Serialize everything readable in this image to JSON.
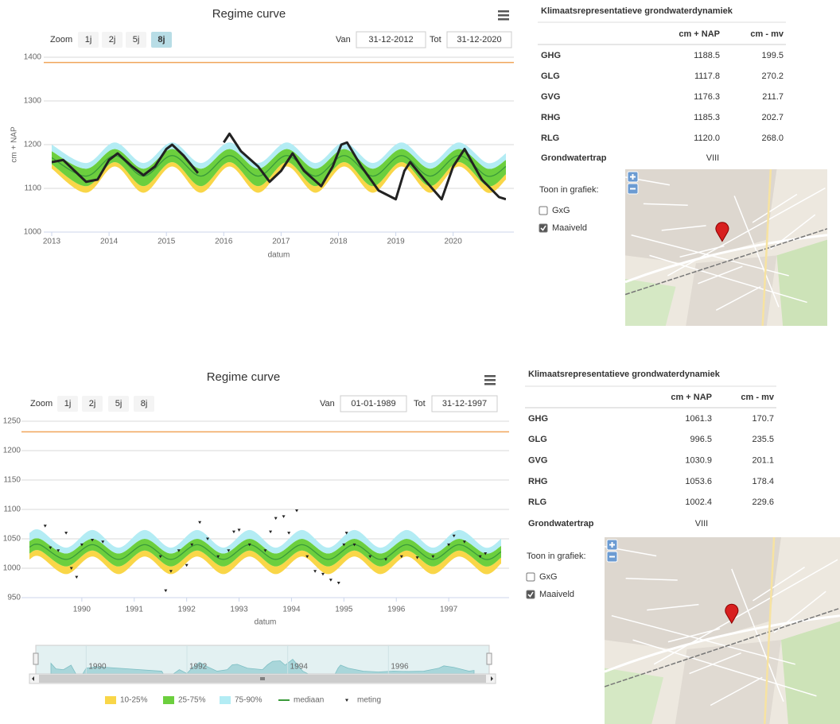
{
  "chart_data": [
    {
      "type": "line",
      "title": "Regime curve",
      "zoom_label": "Zoom",
      "zoom_buttons": [
        "1j",
        "2j",
        "5j",
        "8j"
      ],
      "active_zoom": 3,
      "from_label": "Van",
      "from": "31-12-2012",
      "to_label": "Tot",
      "to": "31-12-2020",
      "ylabel": "cm + NAP",
      "xlabel": "datum",
      "xlim": [
        2013,
        2020.92
      ],
      "ylim": [
        1000,
        1400
      ],
      "xticks": [
        2013,
        2014,
        2015,
        2016,
        2017,
        2018,
        2019,
        2020
      ],
      "yticks": [
        1000,
        1100,
        1200,
        1300,
        1400
      ],
      "grid": true,
      "maaiveld": {
        "value": 1388,
        "color": "#f0a55a"
      },
      "band_x": [
        2013.0,
        2013.6,
        2014.1,
        2014.6,
        2015.1,
        2015.6,
        2016.1,
        2016.6,
        2017.1,
        2017.6,
        2018.1,
        2018.6,
        2019.1,
        2019.6,
        2020.1,
        2020.6,
        2020.92
      ],
      "bands": [
        {
          "color": "#f9d648",
          "lower": [
            1145,
            1090,
            1150,
            1090,
            1150,
            1090,
            1150,
            1090,
            1150,
            1090,
            1150,
            1090,
            1150,
            1090,
            1150,
            1090,
            1120
          ],
          "upper": [
            1155,
            1105,
            1160,
            1105,
            1160,
            1105,
            1160,
            1105,
            1160,
            1105,
            1160,
            1105,
            1160,
            1105,
            1160,
            1105,
            1132
          ]
        },
        {
          "color": "#6ccf3e",
          "lower": [
            1155,
            1105,
            1160,
            1105,
            1160,
            1105,
            1160,
            1105,
            1160,
            1105,
            1160,
            1105,
            1160,
            1105,
            1160,
            1105,
            1132
          ],
          "upper": [
            1185,
            1145,
            1190,
            1145,
            1190,
            1145,
            1190,
            1145,
            1190,
            1145,
            1190,
            1145,
            1190,
            1145,
            1190,
            1145,
            1165
          ]
        },
        {
          "color": "#b3ecf4",
          "lower": [
            1185,
            1145,
            1190,
            1145,
            1190,
            1145,
            1190,
            1145,
            1190,
            1145,
            1190,
            1145,
            1190,
            1145,
            1190,
            1145,
            1165
          ],
          "upper": [
            1200,
            1158,
            1205,
            1158,
            1205,
            1158,
            1205,
            1158,
            1205,
            1158,
            1205,
            1158,
            1205,
            1158,
            1205,
            1158,
            1180
          ]
        }
      ],
      "median": {
        "color": "#3a9a3a",
        "values": [
          1170,
          1128,
          1175,
          1128,
          1175,
          1128,
          1175,
          1128,
          1175,
          1128,
          1175,
          1128,
          1175,
          1128,
          1175,
          1128,
          1150
        ]
      },
      "meting": {
        "color": "#222222",
        "x": [
          2013.0,
          2013.2,
          2013.4,
          2013.6,
          2013.8,
          2014.0,
          2014.15,
          2014.4,
          2014.6,
          2014.8,
          2015.0,
          2015.1,
          2015.3,
          2015.55,
          2015.8,
          2016.0,
          2016.1,
          2016.3,
          2016.6,
          2016.8,
          2017.0,
          2017.2,
          2017.4,
          2017.7,
          2017.9,
          2018.05,
          2018.15,
          2018.4,
          2018.7,
          2019.0,
          2019.15,
          2019.25,
          2019.5,
          2019.8,
          2020.0,
          2020.2,
          2020.5,
          2020.8,
          2020.92
        ],
        "values": [
          1160,
          1165,
          1140,
          1115,
          1120,
          1165,
          1180,
          1150,
          1130,
          1150,
          1190,
          1200,
          1175,
          1135,
          null,
          1205,
          1225,
          1185,
          1150,
          1115,
          1140,
          1180,
          1140,
          1105,
          1150,
          1200,
          1205,
          1150,
          1095,
          1075,
          1140,
          1160,
          1120,
          1075,
          1150,
          1190,
          1120,
          1080,
          1075
        ]
      }
    },
    {
      "type": "scatter",
      "title": "Regime curve",
      "zoom_label": "Zoom",
      "zoom_buttons": [
        "1j",
        "2j",
        "5j",
        "8j"
      ],
      "from_label": "Van",
      "from": "01-01-1989",
      "to_label": "Tot",
      "to": "31-12-1997",
      "xlabel": "datum",
      "xlim": [
        1989,
        1998
      ],
      "ylim": [
        950,
        1250
      ],
      "xticks": [
        1990,
        1991,
        1992,
        1993,
        1994,
        1995,
        1996,
        1997
      ],
      "yticks": [
        950,
        1000,
        1050,
        1100,
        1150,
        1200,
        1250
      ],
      "grid": true,
      "maaiveld": {
        "value": 1232,
        "color": "#f0a55a"
      },
      "band_x": [
        1989.0,
        1989.2,
        1989.7,
        1990.2,
        1990.7,
        1991.2,
        1991.7,
        1992.2,
        1992.7,
        1993.2,
        1993.7,
        1994.2,
        1994.7,
        1995.2,
        1995.7,
        1996.2,
        1996.7,
        1997.2,
        1997.7,
        1998.0
      ],
      "bands": [
        {
          "name": "10-25%",
          "color": "#f9d648",
          "lower": [
            1015,
            1020,
            990,
            1020,
            990,
            1020,
            990,
            1020,
            990,
            1020,
            990,
            1020,
            990,
            1020,
            990,
            1020,
            990,
            1020,
            990,
            1008
          ],
          "upper": [
            1025,
            1030,
            1003,
            1030,
            1003,
            1030,
            1003,
            1030,
            1003,
            1030,
            1003,
            1030,
            1003,
            1030,
            1003,
            1030,
            1003,
            1030,
            1003,
            1018
          ]
        },
        {
          "name": "25-75%",
          "color": "#6ccf3e",
          "lower": [
            1025,
            1030,
            1003,
            1030,
            1003,
            1030,
            1003,
            1030,
            1003,
            1030,
            1003,
            1030,
            1003,
            1030,
            1003,
            1030,
            1003,
            1030,
            1003,
            1018
          ],
          "upper": [
            1046,
            1050,
            1025,
            1050,
            1025,
            1050,
            1025,
            1050,
            1025,
            1050,
            1025,
            1050,
            1025,
            1050,
            1025,
            1050,
            1025,
            1050,
            1025,
            1038
          ]
        },
        {
          "name": "75-90%",
          "color": "#b3ecf4",
          "lower": [
            1046,
            1050,
            1025,
            1050,
            1025,
            1050,
            1025,
            1050,
            1025,
            1050,
            1025,
            1050,
            1025,
            1050,
            1025,
            1050,
            1025,
            1050,
            1025,
            1038
          ],
          "upper": [
            1060,
            1065,
            1035,
            1065,
            1035,
            1065,
            1035,
            1065,
            1035,
            1065,
            1035,
            1065,
            1035,
            1065,
            1035,
            1065,
            1035,
            1065,
            1035,
            1050
          ]
        }
      ],
      "median": {
        "name": "mediaan",
        "color": "#3a9a3a",
        "values": [
          1036,
          1040,
          1015,
          1040,
          1015,
          1040,
          1015,
          1040,
          1015,
          1040,
          1015,
          1040,
          1015,
          1040,
          1015,
          1040,
          1015,
          1040,
          1015,
          1028
        ]
      },
      "meting": {
        "name": "meting",
        "color": "#222222",
        "x": [
          1989.3,
          1989.4,
          1989.55,
          1989.7,
          1989.8,
          1989.9,
          1990.0,
          1990.2,
          1990.4,
          1991.5,
          1991.6,
          1991.7,
          1991.85,
          1992.0,
          1992.1,
          1992.25,
          1992.4,
          1992.6,
          1992.8,
          1992.9,
          1993.0,
          1993.2,
          1993.5,
          1993.6,
          1993.7,
          1993.85,
          1993.95,
          1994.1,
          1994.3,
          1994.45,
          1994.6,
          1994.75,
          1994.9,
          1995.0,
          1995.05,
          1995.2,
          1995.5,
          1995.8,
          1996.1,
          1996.4,
          1996.7,
          1997.0,
          1997.1,
          1997.3,
          1997.6,
          1997.7
        ],
        "values": [
          1072,
          1035,
          1030,
          1060,
          1000,
          985,
          1040,
          1048,
          1045,
          1020,
          962,
          995,
          1030,
          1005,
          1040,
          1078,
          1050,
          1020,
          1030,
          1062,
          1065,
          1040,
          1030,
          1062,
          1085,
          1088,
          1060,
          1098,
          1020,
          995,
          990,
          980,
          975,
          1040,
          1060,
          1040,
          1020,
          1015,
          1020,
          1018,
          1020,
          1040,
          1055,
          1045,
          1020,
          1025
        ]
      },
      "legend": true,
      "navigator": {
        "xticks": [
          1990,
          1992,
          1994,
          1996
        ]
      }
    }
  ],
  "panels": [
    {
      "title": "Klimaatsrepresentatieve grondwaterdynamiek",
      "columns": [
        "cm + NAP",
        "cm - mv"
      ],
      "rows": [
        [
          "GHG",
          "1188.5",
          "199.5"
        ],
        [
          "GLG",
          "1117.8",
          "270.2"
        ],
        [
          "GVG",
          "1176.3",
          "211.7"
        ],
        [
          "RHG",
          "1185.3",
          "202.7"
        ],
        [
          "RLG",
          "1120.0",
          "268.0"
        ]
      ],
      "gwt_label": "Grondwatertrap",
      "gwt": "VIII",
      "toggle_title": "Toon in grafiek:",
      "toggles": [
        {
          "label": "GxG",
          "checked": false
        },
        {
          "label": "Maaiveld",
          "checked": true
        }
      ]
    },
    {
      "title": "Klimaatsrepresentatieve grondwaterdynamiek",
      "columns": [
        "cm + NAP",
        "cm - mv"
      ],
      "rows": [
        [
          "GHG",
          "1061.3",
          "170.7"
        ],
        [
          "GLG",
          "996.5",
          "235.5"
        ],
        [
          "GVG",
          "1030.9",
          "201.1"
        ],
        [
          "RHG",
          "1053.6",
          "178.4"
        ],
        [
          "RLG",
          "1002.4",
          "229.6"
        ]
      ],
      "gwt_label": "Grondwatertrap",
      "gwt": "VIII",
      "toggle_title": "Toon in grafiek:",
      "toggles": [
        {
          "label": "GxG",
          "checked": false
        },
        {
          "label": "Maaiveld",
          "checked": true
        }
      ]
    }
  ]
}
